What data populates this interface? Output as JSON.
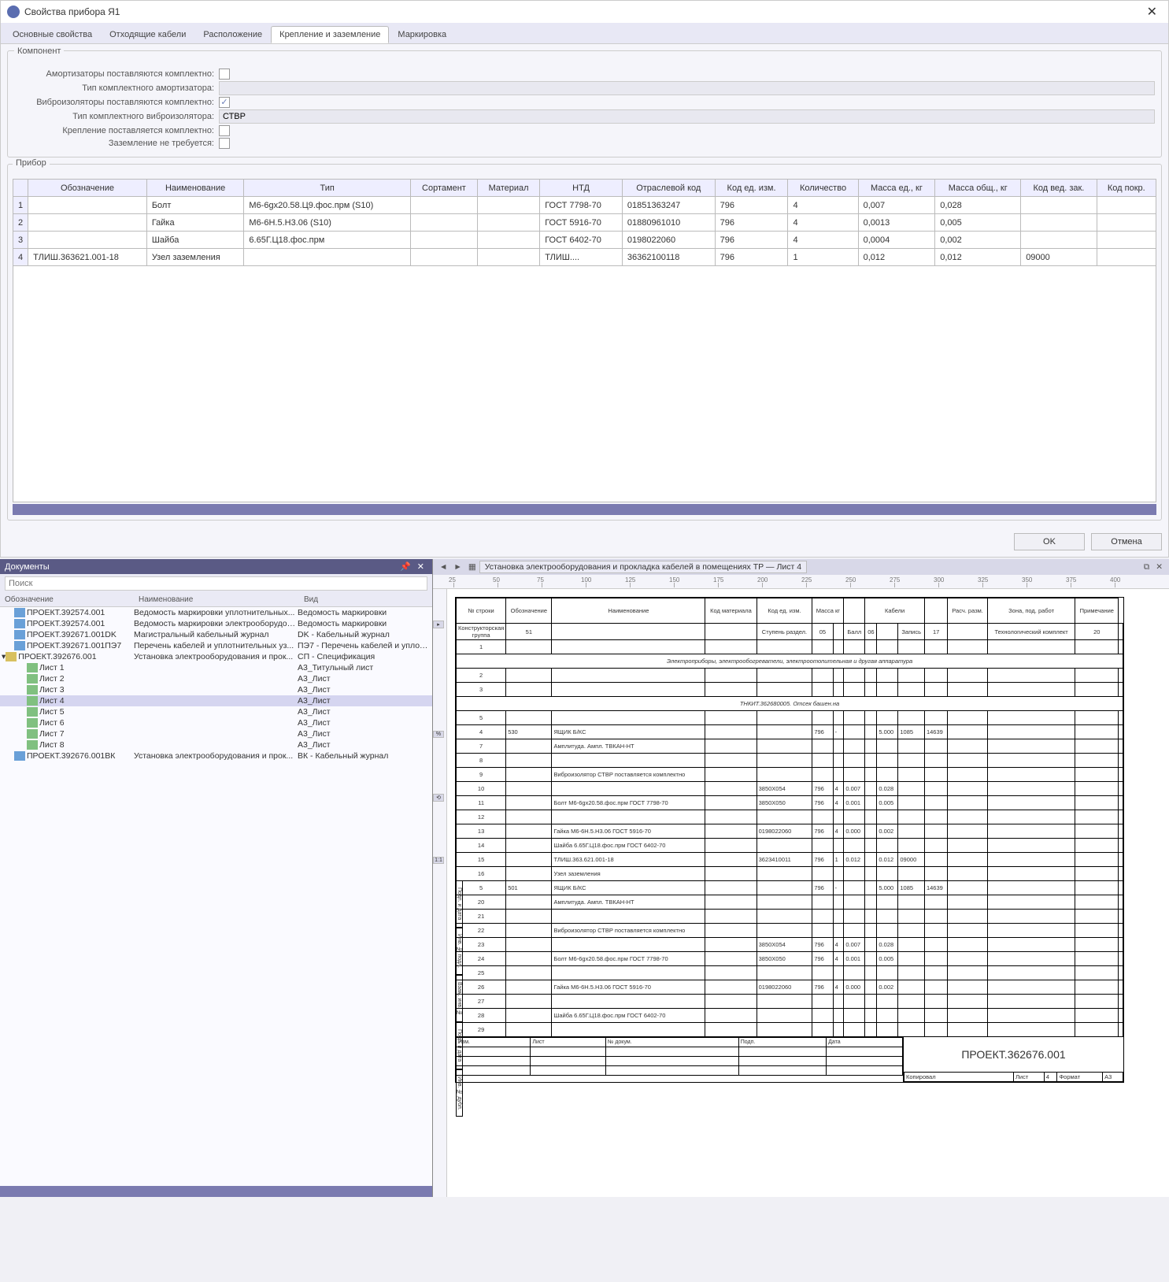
{
  "dialog": {
    "title": "Свойства прибора Я1",
    "tabs": [
      "Основные свойства",
      "Отходящие кабели",
      "Расположение",
      "Крепление и заземление",
      "Маркировка"
    ],
    "active_tab": 3,
    "group1": {
      "title": "Компонент",
      "rows": [
        {
          "label": "Амортизаторы поставляются комплектно:",
          "type": "check",
          "checked": false
        },
        {
          "label": "Тип комплектного амортизатора:",
          "type": "text",
          "value": ""
        },
        {
          "label": "Виброизоляторы поставляются комплектно:",
          "type": "check",
          "checked": true
        },
        {
          "label": "Тип комплектного виброизолятора:",
          "type": "text",
          "value": "СТВР"
        },
        {
          "label": "Крепление поставляется комплектно:",
          "type": "check",
          "checked": false
        },
        {
          "label": "Заземление не требуется:",
          "type": "check",
          "checked": false
        }
      ]
    },
    "group2": {
      "title": "Прибор",
      "columns": [
        "Обозначение",
        "Наименование",
        "Тип",
        "Сортамент",
        "Материал",
        "НТД",
        "Отраслевой код",
        "Код ед. изм.",
        "Количество",
        "Масса ед., кг",
        "Масса общ., кг",
        "Код вед. зак.",
        "Код покр."
      ],
      "rows": [
        {
          "n": "1",
          "cells": [
            "",
            "Болт",
            "М6-6gx20.58.Ц9.фос.прм (S10)",
            "",
            "",
            "ГОСТ 7798-70",
            "01851363247",
            "796",
            "4",
            "0,007",
            "0,028",
            "",
            ""
          ]
        },
        {
          "n": "2",
          "cells": [
            "",
            "Гайка",
            "М6-6H.5.H3.06 (S10)",
            "",
            "",
            "ГОСТ 5916-70",
            "01880961010",
            "796",
            "4",
            "0,0013",
            "0,005",
            "",
            ""
          ]
        },
        {
          "n": "3",
          "cells": [
            "",
            "Шайба",
            "6.65Г.Ц18.фос.прм",
            "",
            "",
            "ГОСТ 6402-70",
            "0198022060",
            "796",
            "4",
            "0,0004",
            "0,002",
            "",
            ""
          ]
        },
        {
          "n": "4",
          "cells": [
            "ТЛИШ.363621.001-18",
            "Узел заземления",
            "",
            "",
            "",
            "ТЛИШ....",
            "36362100118",
            "796",
            "1",
            "0,012",
            "0,012",
            "09000",
            ""
          ]
        }
      ]
    },
    "buttons": {
      "ok": "OK",
      "cancel": "Отмена"
    }
  },
  "docs": {
    "title": "Документы",
    "search_placeholder": "Поиск",
    "columns": [
      "Обозначение",
      "Наименование",
      "Вид"
    ],
    "items": [
      {
        "icon": "doc",
        "indent": 1,
        "name": "ПРОЕКТ.392574.001",
        "desc": "Ведомость маркировки уплотнительных...",
        "kind": "Ведомость маркировки"
      },
      {
        "icon": "doc",
        "indent": 1,
        "name": "ПРОЕКТ.392574.001",
        "desc": "Ведомость маркировки электрооборудов...",
        "kind": "Ведомость маркировки"
      },
      {
        "icon": "doc",
        "indent": 1,
        "name": "ПРОЕКТ.392671.001DK",
        "desc": "Магистральный кабельный журнал",
        "kind": "DK - Кабельный журнал"
      },
      {
        "icon": "doc",
        "indent": 1,
        "name": "ПРОЕКТ.392671.001ПЭ7",
        "desc": "Перечень кабелей и уплотнительных уз...",
        "kind": "ПЭ7 - Перечень кабелей и уплотнитель..."
      },
      {
        "icon": "fold",
        "indent": 0,
        "name": "ПРОЕКТ.392676.001",
        "desc": "Установка электрооборудования и прок...",
        "kind": "СП - Спецификация",
        "expand": true
      },
      {
        "icon": "sheet",
        "indent": 2,
        "name": "Лист 1",
        "desc": "",
        "kind": "А3_Титульный лист"
      },
      {
        "icon": "sheet",
        "indent": 2,
        "name": "Лист 2",
        "desc": "",
        "kind": "А3_Лист"
      },
      {
        "icon": "sheet",
        "indent": 2,
        "name": "Лист 3",
        "desc": "",
        "kind": "А3_Лист"
      },
      {
        "icon": "sheet",
        "indent": 2,
        "name": "Лист 4",
        "desc": "",
        "kind": "А3_Лист",
        "sel": true
      },
      {
        "icon": "sheet",
        "indent": 2,
        "name": "Лист 5",
        "desc": "",
        "kind": "А3_Лист"
      },
      {
        "icon": "sheet",
        "indent": 2,
        "name": "Лист 6",
        "desc": "",
        "kind": "А3_Лист"
      },
      {
        "icon": "sheet",
        "indent": 2,
        "name": "Лист 7",
        "desc": "",
        "kind": "А3_Лист"
      },
      {
        "icon": "sheet",
        "indent": 2,
        "name": "Лист 8",
        "desc": "",
        "kind": "А3_Лист"
      },
      {
        "icon": "doc",
        "indent": 1,
        "name": "ПРОЕКТ.392676.001ВК",
        "desc": "Установка электрооборудования и прок...",
        "kind": "ВК - Кабельный журнал"
      }
    ]
  },
  "drawing": {
    "tab": "Установка электрооборудования и прокладка кабелей в помещениях ТР — Лист 4",
    "ruler_marks": [
      25,
      50,
      75,
      100,
      125,
      150,
      175,
      200,
      225,
      250,
      275,
      300,
      325,
      350,
      375,
      400
    ],
    "header_top": [
      "№ строки",
      "Обозначение",
      "Наименование",
      "Код материала",
      "Код ед. изм.",
      "Масса кг",
      "",
      "Кабели",
      "",
      "Расч. разм.",
      "Зона, под. работ",
      "Примечание"
    ],
    "header_sub1": [
      "Единица",
      "Общая"
    ],
    "header_sub2": [
      "Кол.",
      "Ед. изм.",
      "Сорт."
    ],
    "header_row2": [
      "Конструкторская группа",
      "51",
      "",
      "",
      "Ступень раздел.",
      "05",
      "",
      "Балл",
      "06",
      "",
      "Запись",
      "17",
      "",
      "Технологический комплект",
      "20",
      ""
    ],
    "section1": "Электроприборы, электрообогреватели, электроотопительная и другая аппаратура",
    "section2": "ТНКИТ.362680005. Отсек башен.на",
    "rows": [
      {
        "n": "4",
        "obz": "530",
        "name": "ЯЩИК Б/КС",
        "kod": "",
        "ei": "796",
        "m1": "-",
        "m2": "",
        "k": "5.000",
        "e": "1085",
        "s": "14639"
      },
      {
        "n": "7",
        "obz": "",
        "name": "Амплитуда. Ампл. ТВКАН-НТ",
        "kod": "",
        "ei": "",
        "m1": "",
        "m2": "",
        "k": "",
        "e": "",
        "s": ""
      },
      {
        "n": "8",
        "obz": "",
        "name": "",
        "kod": "",
        "ei": "",
        "m1": "",
        "m2": "",
        "k": "",
        "e": "",
        "s": ""
      },
      {
        "n": "9",
        "obz": "",
        "name": "Виброизолятор СТВР поставляется комплектно",
        "kod": "",
        "ei": "",
        "m1": "",
        "m2": "",
        "k": "",
        "e": "",
        "s": ""
      },
      {
        "n": "10",
        "obz": "",
        "name": "",
        "kod": "3850X054",
        "ei": "796",
        "m1": "4",
        "m2": "0.007",
        "k": "0.028",
        "e": "",
        "s": ""
      },
      {
        "n": "11",
        "obz": "",
        "name": "Болт М6-6gx20.58.фос.прм ГОСТ 7798-70",
        "kod": "3850X050",
        "ei": "796",
        "m1": "4",
        "m2": "0.001",
        "k": "0.005",
        "e": "",
        "s": ""
      },
      {
        "n": "12",
        "obz": "",
        "name": "",
        "kod": "",
        "ei": "",
        "m1": "",
        "m2": "",
        "k": "",
        "e": "",
        "s": ""
      },
      {
        "n": "13",
        "obz": "",
        "name": "Гайка М6-6H.5.H3.06 ГОСТ 5916-70",
        "kod": "0198022060",
        "ei": "796",
        "m1": "4",
        "m2": "0.000",
        "k": "0.002",
        "e": "",
        "s": ""
      },
      {
        "n": "14",
        "obz": "",
        "name": "Шайба 6.65Г.Ц18.фос.прм ГОСТ 6402-70",
        "kod": "",
        "ei": "",
        "m1": "",
        "m2": "",
        "k": "",
        "e": "",
        "s": ""
      },
      {
        "n": "15",
        "obz": "",
        "name": "ТЛИШ.363.621.001-18",
        "kod": "3623410011",
        "ei": "796",
        "m1": "1",
        "m2": "0.012",
        "k": "0.012",
        "e": "09000",
        "s": ""
      },
      {
        "n": "16",
        "obz": "",
        "name": "Узел заземления",
        "kod": "",
        "ei": "",
        "m1": "",
        "m2": "",
        "k": "",
        "e": "",
        "s": ""
      },
      {
        "n": "5",
        "obz": "501",
        "name": "ЯЩИК Б/КС",
        "kod": "",
        "ei": "796",
        "m1": "-",
        "m2": "",
        "k": "5.000",
        "e": "1085",
        "s": "14639"
      },
      {
        "n": "20",
        "obz": "",
        "name": "Амплитуда. Ампл. ТВКАН-НТ",
        "kod": "",
        "ei": "",
        "m1": "",
        "m2": "",
        "k": "",
        "e": "",
        "s": ""
      },
      {
        "n": "21",
        "obz": "",
        "name": "",
        "kod": "",
        "ei": "",
        "m1": "",
        "m2": "",
        "k": "",
        "e": "",
        "s": ""
      },
      {
        "n": "22",
        "obz": "",
        "name": "Виброизолятор СТВР поставляется комплектно",
        "kod": "",
        "ei": "",
        "m1": "",
        "m2": "",
        "k": "",
        "e": "",
        "s": ""
      },
      {
        "n": "23",
        "obz": "",
        "name": "",
        "kod": "3850X054",
        "ei": "796",
        "m1": "4",
        "m2": "0.007",
        "k": "0.028",
        "e": "",
        "s": ""
      },
      {
        "n": "24",
        "obz": "",
        "name": "Болт М6-6gx20.58.фос.прм ГОСТ 7798-70",
        "kod": "3850X050",
        "ei": "796",
        "m1": "4",
        "m2": "0.001",
        "k": "0.005",
        "e": "",
        "s": ""
      },
      {
        "n": "25",
        "obz": "",
        "name": "",
        "kod": "",
        "ei": "",
        "m1": "",
        "m2": "",
        "k": "",
        "e": "",
        "s": ""
      },
      {
        "n": "26",
        "obz": "",
        "name": "Гайка М6-6H.5.H3.06 ГОСТ 5916-70",
        "kod": "0198022060",
        "ei": "796",
        "m1": "4",
        "m2": "0.000",
        "k": "0.002",
        "e": "",
        "s": ""
      },
      {
        "n": "27",
        "obz": "",
        "name": "",
        "kod": "",
        "ei": "",
        "m1": "",
        "m2": "",
        "k": "",
        "e": "",
        "s": ""
      },
      {
        "n": "28",
        "obz": "",
        "name": "Шайба 6.65Г.Ц18.фос.прм ГОСТ 6402-70",
        "kod": "",
        "ei": "",
        "m1": "",
        "m2": "",
        "k": "",
        "e": "",
        "s": ""
      },
      {
        "n": "29",
        "obz": "",
        "name": "",
        "kod": "",
        "ei": "",
        "m1": "",
        "m2": "",
        "k": "",
        "e": "",
        "s": ""
      }
    ],
    "titleblock": {
      "project": "ПРОЕКТ.362676.001",
      "cells": [
        "Изм.",
        "Лист",
        "№ докум.",
        "Подп.",
        "Дата"
      ],
      "sheet_label": "Лист",
      "sheet_no": "4",
      "format": "Формат",
      "format_v": "А3",
      "copy": "Копировал"
    },
    "sidebox": [
      "Подп. и дата",
      "Инв. № подл.",
      "Взам. инв. №",
      "Подп. и дата",
      "Инв. № дубл."
    ]
  }
}
